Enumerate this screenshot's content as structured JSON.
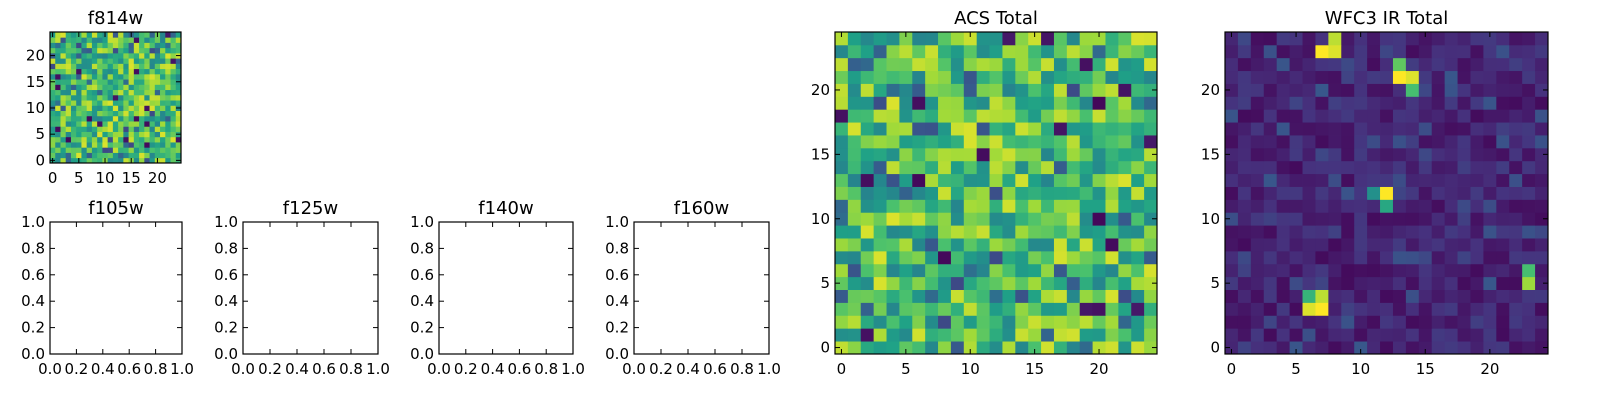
{
  "figure": {
    "type": "heatmap-grid",
    "colormap": [
      "#440154",
      "#46327e",
      "#365c8d",
      "#277f8e",
      "#1fa187",
      "#4ac16d",
      "#a0da39",
      "#fde725"
    ]
  },
  "chart_data": [
    {
      "type": "heatmap",
      "title": "f814w",
      "grid_size": 25,
      "xlim": [
        -0.5,
        24.5
      ],
      "ylim": [
        -0.5,
        24.5
      ],
      "xticks": [
        0,
        5,
        10,
        15,
        20
      ],
      "yticks": [
        0,
        5,
        10,
        15,
        20
      ],
      "value_range": [
        0,
        1
      ],
      "distribution": "noise-high",
      "seed": 11
    },
    {
      "type": "heatmap",
      "title": "f105w",
      "empty": true,
      "xlim": [
        0,
        1
      ],
      "ylim": [
        0,
        1
      ],
      "xticks": [
        "0.0",
        "0.2",
        "0.4",
        "0.6",
        "0.8",
        "1.0"
      ],
      "yticks": [
        "0.0",
        "0.2",
        "0.4",
        "0.6",
        "0.8",
        "1.0"
      ]
    },
    {
      "type": "heatmap",
      "title": "f125w",
      "empty": true,
      "xlim": [
        0,
        1
      ],
      "ylim": [
        0,
        1
      ],
      "xticks": [
        "0.0",
        "0.2",
        "0.4",
        "0.6",
        "0.8",
        "1.0"
      ],
      "yticks": [
        "0.0",
        "0.2",
        "0.4",
        "0.6",
        "0.8",
        "1.0"
      ]
    },
    {
      "type": "heatmap",
      "title": "f140w",
      "empty": true,
      "xlim": [
        0,
        1
      ],
      "ylim": [
        0,
        1
      ],
      "xticks": [
        "0.0",
        "0.2",
        "0.4",
        "0.6",
        "0.8",
        "1.0"
      ],
      "yticks": [
        "0.0",
        "0.2",
        "0.4",
        "0.6",
        "0.8",
        "1.0"
      ]
    },
    {
      "type": "heatmap",
      "title": "f160w",
      "empty": true,
      "xlim": [
        0,
        1
      ],
      "ylim": [
        0,
        1
      ],
      "xticks": [
        "0.0",
        "0.2",
        "0.4",
        "0.6",
        "0.8",
        "1.0"
      ],
      "yticks": [
        "0.0",
        "0.2",
        "0.4",
        "0.6",
        "0.8",
        "1.0"
      ]
    },
    {
      "type": "heatmap",
      "title": "ACS Total",
      "grid_size": 25,
      "xlim": [
        -0.5,
        24.5
      ],
      "ylim": [
        -0.5,
        24.5
      ],
      "xticks": [
        0,
        5,
        10,
        15,
        20
      ],
      "yticks": [
        0,
        5,
        10,
        15,
        20
      ],
      "value_range": [
        0,
        1
      ],
      "distribution": "noise-high",
      "seed": 29
    },
    {
      "type": "heatmap",
      "title": "WFC3 IR Total",
      "grid_size": 25,
      "xlim": [
        -0.5,
        24.5
      ],
      "ylim": [
        -0.5,
        24.5
      ],
      "xticks": [
        0,
        5,
        10,
        15,
        20
      ],
      "yticks": [
        0,
        5,
        10,
        15,
        20
      ],
      "value_range": [
        0,
        1
      ],
      "distribution": "noise-low-with-sources",
      "seed": 47,
      "hotspots": [
        {
          "x": 7,
          "y": 23,
          "v": 1.0
        },
        {
          "x": 8,
          "y": 23,
          "v": 0.95
        },
        {
          "x": 8,
          "y": 24,
          "v": 0.9
        },
        {
          "x": 13,
          "y": 21,
          "v": 1.0
        },
        {
          "x": 14,
          "y": 21,
          "v": 0.95
        },
        {
          "x": 13,
          "y": 22,
          "v": 0.75
        },
        {
          "x": 14,
          "y": 20,
          "v": 0.7
        },
        {
          "x": 12,
          "y": 12,
          "v": 1.0
        },
        {
          "x": 12,
          "y": 11,
          "v": 0.6
        },
        {
          "x": 11,
          "y": 12,
          "v": 0.5
        },
        {
          "x": 7,
          "y": 3,
          "v": 1.0
        },
        {
          "x": 6,
          "y": 3,
          "v": 0.95
        },
        {
          "x": 7,
          "y": 4,
          "v": 0.9
        },
        {
          "x": 6,
          "y": 4,
          "v": 0.65
        },
        {
          "x": 23,
          "y": 5,
          "v": 0.85
        },
        {
          "x": 23,
          "y": 6,
          "v": 0.7
        }
      ]
    }
  ]
}
